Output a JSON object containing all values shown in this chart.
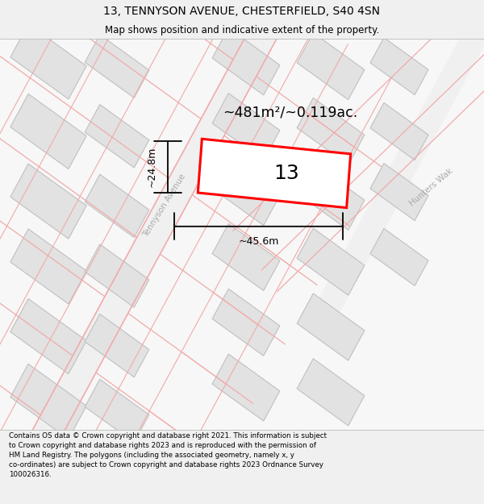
{
  "title": "13, TENNYSON AVENUE, CHESTERFIELD, S40 4SN",
  "subtitle": "Map shows position and indicative extent of the property.",
  "footer": "Contains OS data © Crown copyright and database right 2021. This information is subject\nto Crown copyright and database rights 2023 and is reproduced with the permission of\nHM Land Registry. The polygons (including the associated geometry, namely x, y\nco-ordinates) are subject to Crown copyright and database rights 2023 Ordnance Survey\n100026316.",
  "property_label": "13",
  "area_label": "~481m²/~0.119ac.",
  "dim_width": "~45.6m",
  "dim_height": "~24.8m",
  "street_label_1": "Tennyson Avenue",
  "street_label_2": "Hunters Wak",
  "map_bg": "#ffffff",
  "block_fc": "#e2e2e2",
  "block_ec": "#c0c0c0",
  "road_pink": "#f2aaaa",
  "fig_bg": "#f0f0f0",
  "figsize": [
    6.0,
    6.25
  ],
  "dpi": 100,
  "title_fs": 10,
  "subtitle_fs": 8.5,
  "footer_fs": 6.3
}
